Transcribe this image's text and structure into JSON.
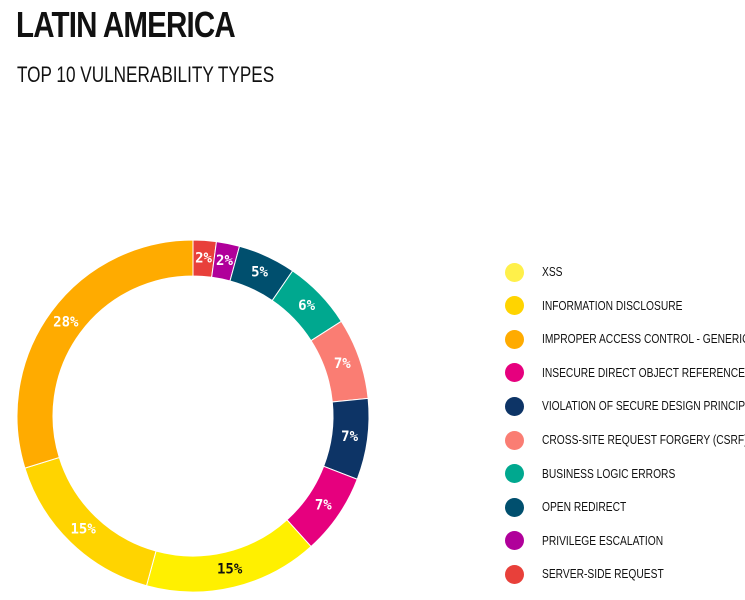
{
  "header": {
    "title": "LATIN AMERICA",
    "subtitle": "TOP 10 VULNERABILITY TYPES"
  },
  "chart_data": {
    "type": "pie",
    "donut": true,
    "title": "LATIN AMERICA",
    "subtitle": "TOP 10 VULNERABILITY TYPES",
    "legend_position": "right",
    "categories": [
      "XSS",
      "INFORMATION DISCLOSURE",
      "IMPROPER ACCESS CONTROL - GENERIC",
      "INSECURE DIRECT OBJECT REFERENCE (IDOR)",
      "VIOLATION OF SECURE DESIGN PRINCIPLES",
      "CROSS-SITE REQUEST FORGERY (CSRF)",
      "BUSINESS LOGIC ERRORS",
      "OPEN REDIRECT",
      "PRIVILEGE ESCALATION",
      "SERVER-SIDE REQUEST"
    ],
    "values": [
      15,
      15,
      28,
      7,
      7,
      7,
      6,
      5,
      2,
      2
    ],
    "value_labels": [
      "15%",
      "15%",
      "28%",
      "7%",
      "7%",
      "7%",
      "6%",
      "5%",
      "2%",
      "2%"
    ],
    "colors": [
      "#fff000",
      "#ffd400",
      "#ffab00",
      "#e6007e",
      "#0d3466",
      "#fa7d73",
      "#00a88f",
      "#004f6e",
      "#b0009a",
      "#e8403a"
    ],
    "legend_colors": [
      "#fff04a",
      "#ffd400",
      "#ffab00",
      "#e6007e",
      "#0d3466",
      "#fa7d73",
      "#00a88f",
      "#004f6e",
      "#b0009a",
      "#e8403a"
    ],
    "label_colors": [
      "#111111",
      "#ffffff",
      "#ffffff",
      "#ffffff",
      "#ffffff",
      "#ffffff",
      "#ffffff",
      "#ffffff",
      "#ffffff",
      "#ffffff"
    ],
    "slice_order_clockwise_from_top": [
      "SERVER-SIDE REQUEST",
      "PRIVILEGE ESCALATION",
      "OPEN REDIRECT",
      "BUSINESS LOGIC ERRORS",
      "CROSS-SITE REQUEST FORGERY (CSRF)",
      "VIOLATION OF SECURE DESIGN PRINCIPLES",
      "INSECURE DIRECT OBJECT REFERENCE (IDOR)",
      "XSS",
      "INFORMATION DISCLOSURE",
      "IMPROPER ACCESS CONTROL - GENERIC"
    ]
  }
}
